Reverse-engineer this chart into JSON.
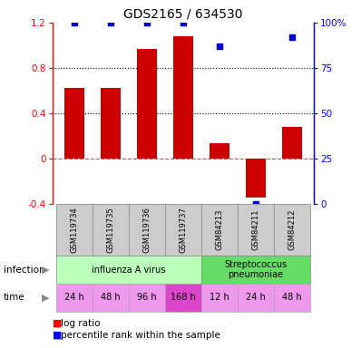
{
  "title": "GDS2165 / 634530",
  "samples": [
    "GSM119734",
    "GSM119735",
    "GSM119736",
    "GSM119737",
    "GSM84213",
    "GSM84211",
    "GSM84212"
  ],
  "log_ratio": [
    0.62,
    0.62,
    0.97,
    1.08,
    0.13,
    -0.35,
    0.28
  ],
  "percentile_rank": [
    100,
    100,
    100,
    100,
    87,
    0,
    92
  ],
  "ylim_left": [
    -0.4,
    1.2
  ],
  "ylim_right": [
    0,
    100
  ],
  "yticks_left": [
    -0.4,
    0.0,
    0.4,
    0.8,
    1.2
  ],
  "yticks_right": [
    0,
    25,
    50,
    75,
    100
  ],
  "bar_color": "#cc0000",
  "dot_color": "#0000cc",
  "zero_line_color": "#cc0000",
  "infection_groups": [
    {
      "label": "influenza A virus",
      "start": 0,
      "end": 4,
      "color": "#bbffbb"
    },
    {
      "label": "Streptococcus\npneumoniae",
      "start": 4,
      "end": 7,
      "color": "#66dd66"
    }
  ],
  "time_labels": [
    "24 h",
    "48 h",
    "96 h",
    "168 h",
    "12 h",
    "24 h",
    "48 h"
  ],
  "time_colors": [
    "#ee99ee",
    "#ee99ee",
    "#ee99ee",
    "#dd44cc",
    "#ee99ee",
    "#ee99ee",
    "#ee99ee"
  ],
  "sample_box_color": "#cccccc",
  "sample_box_edge": "#999999",
  "infection_label": "infection",
  "time_label": "time",
  "legend_bar_label": "log ratio",
  "legend_dot_label": "percentile rank within the sample",
  "bg_color": "#ffffff"
}
